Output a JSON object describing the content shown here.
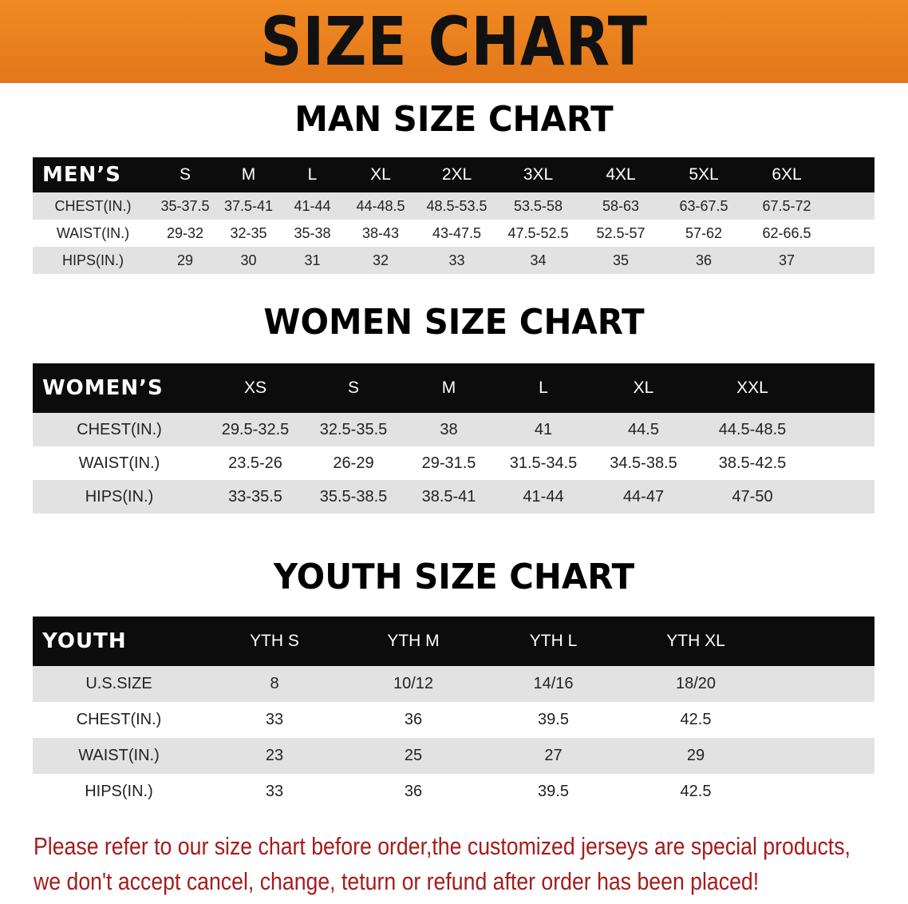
{
  "banner_title": "SIZE CHART",
  "men": {
    "title": "MAN SIZE CHART",
    "header": [
      "MEN’S",
      "S",
      "M",
      "L",
      "XL",
      "2XL",
      "3XL",
      "4XL",
      "5XL",
      "6XL"
    ],
    "rows": [
      [
        "CHEST(IN.)",
        "35-37.5",
        "37.5-41",
        "41-44",
        "44-48.5",
        "48.5-53.5",
        "53.5-58",
        "58-63",
        "63-67.5",
        "67.5-72"
      ],
      [
        "WAIST(IN.)",
        "29-32",
        "32-35",
        "35-38",
        "38-43",
        "43-47.5",
        "47.5-52.5",
        "52.5-57",
        "57-62",
        "62-66.5"
      ],
      [
        "HIPS(IN.)",
        "29",
        "30",
        "31",
        "32",
        "33",
        "34",
        "35",
        "36",
        "37"
      ]
    ]
  },
  "women": {
    "title": "WOMEN SIZE CHART",
    "header": [
      "WOMEN’S",
      "XS",
      "S",
      "M",
      "L",
      "XL",
      "XXL"
    ],
    "rows": [
      [
        "CHEST(IN.)",
        "29.5-32.5",
        "32.5-35.5",
        "38",
        "41",
        "44.5",
        "44.5-48.5"
      ],
      [
        "WAIST(IN.)",
        "23.5-26",
        "26-29",
        "29-31.5",
        "31.5-34.5",
        "34.5-38.5",
        "38.5-42.5"
      ],
      [
        "HIPS(IN.)",
        "33-35.5",
        "35.5-38.5",
        "38.5-41",
        "41-44",
        "44-47",
        "47-50"
      ]
    ]
  },
  "youth": {
    "title": "YOUTH SIZE CHART",
    "header": [
      "YOUTH",
      "YTH S",
      "YTH M",
      "YTH L",
      "YTH XL"
    ],
    "rows": [
      [
        "U.S.SIZE",
        "8",
        "10/12",
        "14/16",
        "18/20"
      ],
      [
        "CHEST(IN.)",
        "33",
        "36",
        "39.5",
        "42.5"
      ],
      [
        "WAIST(IN.)",
        "23",
        "25",
        "27",
        "29"
      ],
      [
        "HIPS(IN.)",
        "33",
        "36",
        "39.5",
        "42.5"
      ]
    ]
  },
  "notice": [
    "Please refer to our size chart before order,the customized jerseys are special products,",
    "we don't accept cancel, change, teturn or refund after order has been placed!"
  ],
  "colors": {
    "banner": "#e87f1c",
    "header_row": "#0c0c0c",
    "stripe": "#e2e2e2",
    "notice": "#a51c1c"
  }
}
